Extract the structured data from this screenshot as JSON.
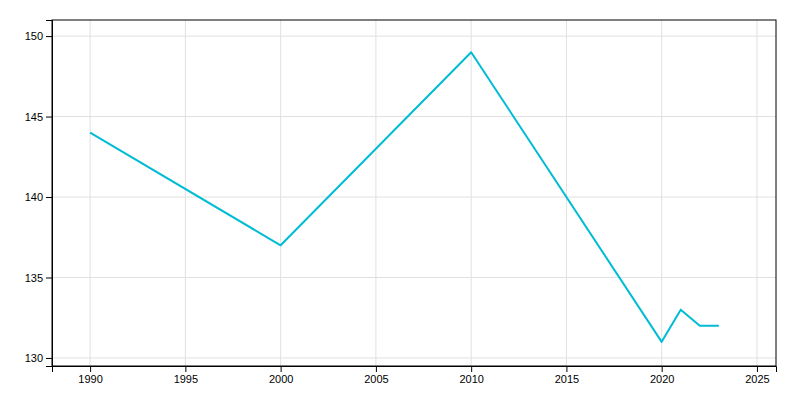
{
  "chart_data": {
    "type": "line",
    "x": [
      1990,
      2000,
      2010,
      2020,
      2021,
      2022,
      2023
    ],
    "values": [
      144,
      137,
      149,
      131,
      133,
      132,
      132
    ],
    "color": "#00BCD4",
    "xlim": [
      1988,
      2026
    ],
    "ylim": [
      129.5,
      151
    ],
    "xticks": [
      1990,
      1995,
      2000,
      2005,
      2010,
      2015,
      2020,
      2025
    ],
    "yticks": [
      130,
      135,
      140,
      145,
      150
    ],
    "grid": true
  }
}
